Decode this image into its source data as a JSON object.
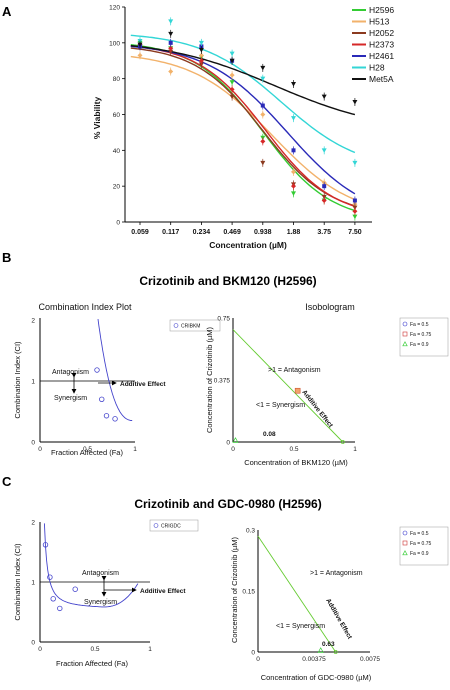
{
  "panels": {
    "A": {
      "label": "A",
      "chart_data": {
        "type": "scatter",
        "title": "",
        "xlabel": "Concentration (µM)",
        "ylabel": "% Viability",
        "x_scale": "log2",
        "x": [
          0.059,
          0.117,
          0.234,
          0.469,
          0.938,
          1.88,
          3.75,
          7.5
        ],
        "x_tick_labels": [
          "0.059",
          "0.117",
          "0.234",
          "0.469",
          "0.938",
          "1.88",
          "3.75",
          "7.50"
        ],
        "y_ticks": [
          0,
          20,
          40,
          60,
          80,
          100,
          120
        ],
        "ylim": [
          0,
          120
        ],
        "legend_position": "top-right",
        "grid": false,
        "series": [
          {
            "name": "H2596",
            "color": "#33cc33",
            "marker": "triangle-down",
            "values": [
              100,
              97,
              92,
              78,
              47,
              16,
              12,
              3
            ]
          },
          {
            "name": "H513",
            "color": "#f2b26b",
            "marker": "diamond",
            "values": [
              93,
              84,
              93,
              82,
              60,
              28,
              22,
              10
            ]
          },
          {
            "name": "H2052",
            "color": "#8b3a1f",
            "marker": "triangle-down",
            "values": [
              98,
              95,
              88,
              70,
              33,
              21,
              14,
              8
            ]
          },
          {
            "name": "H2373",
            "color": "#d62828",
            "marker": "diamond",
            "values": [
              99,
              97,
              90,
              74,
              45,
              20,
              12,
              6
            ]
          },
          {
            "name": "H2461",
            "color": "#2a2ab8",
            "marker": "square",
            "values": [
              98,
              100,
              98,
              90,
              65,
              40,
              20,
              12
            ]
          },
          {
            "name": "H28",
            "color": "#33d6d6",
            "marker": "triangle-down",
            "values": [
              101,
              112,
              100,
              94,
              80,
              58,
              40,
              33
            ]
          },
          {
            "name": "Met5A",
            "color": "#111111",
            "marker": "triangle-down",
            "values": [
              99,
              105,
              96,
              90,
              86,
              77,
              70,
              67
            ]
          }
        ]
      }
    },
    "B": {
      "label": "B",
      "title": "Crizotinib and BKM120 (H2596)",
      "ci_plot": {
        "title": "Combination Index Plot",
        "chart_data": {
          "type": "scatter",
          "xlabel": "Fraction Affected (Fa)",
          "ylabel": "Combination Index (CI)",
          "xlim": [
            0,
            1
          ],
          "ylim": [
            0,
            2
          ],
          "x_ticks": [
            "0",
            "0.5",
            "1"
          ],
          "y_ticks": [
            "0",
            "1",
            "2"
          ],
          "legend": "CRIBKM",
          "legend_position": "top-right",
          "points": [
            [
              0.6,
              1.18
            ],
            [
              0.65,
              0.7
            ],
            [
              0.7,
              0.43
            ],
            [
              0.79,
              0.38
            ]
          ],
          "reference_line": 1
        },
        "annotations": {
          "antagonism": "Antagonism",
          "synergism": "Synergism",
          "additive": "Additive Effect"
        }
      },
      "isobologram": {
        "title": "Isobologram",
        "chart_data": {
          "type": "scatter",
          "xlabel": "Concentration of BKM120 (µM)",
          "ylabel": "Concentration of Crizotinib (µM)",
          "xlim": [
            0,
            1
          ],
          "ylim": [
            0,
            0.75
          ],
          "x_ticks": [
            "0",
            "0.5",
            "1"
          ],
          "y_ticks": [
            "0",
            "0.375",
            "0.75"
          ],
          "legend_position": "top-right",
          "legend": [
            "Fa = 0.5",
            "Fa = 0.75",
            "Fa = 0.9"
          ],
          "additive_line": [
            [
              0,
              0.68
            ],
            [
              0.9,
              0
            ]
          ],
          "points": [
            {
              "fa": "Fa = 0.75",
              "x": 0.53,
              "y": 0.31
            },
            {
              "fa": "Fa = 0.9",
              "x": 0.02,
              "y": 0.01
            }
          ]
        },
        "annotations": {
          "antagonism": ">1 = Antagonism",
          "synergism": "<1 = Synergism",
          "additive": "Additive Effect",
          "ci_value": "0.08"
        }
      }
    },
    "C": {
      "label": "C",
      "title": "Crizotinib and GDC-0980 (H2596)",
      "ci_plot": {
        "chart_data": {
          "type": "scatter",
          "xlabel": "Fraction Affected (Fa)",
          "ylabel": "Combination Index (CI)",
          "xlim": [
            0,
            1
          ],
          "ylim": [
            0,
            2
          ],
          "x_ticks": [
            "0",
            "0.5",
            "1"
          ],
          "y_ticks": [
            "0",
            "1",
            "2"
          ],
          "legend": "CRIGDC",
          "legend_position": "top-right",
          "points": [
            [
              0.05,
              1.62
            ],
            [
              0.09,
              1.08
            ],
            [
              0.12,
              0.72
            ],
            [
              0.18,
              0.56
            ],
            [
              0.32,
              0.88
            ]
          ],
          "reference_line": 1
        },
        "annotations": {
          "antagonism": "Antagonism",
          "synergism": "Synergism",
          "additive": "Additive Effect"
        }
      },
      "isobologram": {
        "chart_data": {
          "type": "scatter",
          "xlabel": "Concentration of GDC-0980 (µM)",
          "ylabel": "Concentration of Crizotinib (µM)",
          "xlim": [
            0,
            0.0075
          ],
          "ylim": [
            0,
            0.3
          ],
          "x_ticks": [
            "0",
            "0.00375",
            "0.0075"
          ],
          "y_ticks": [
            "0",
            "0.15",
            "0.3"
          ],
          "legend_position": "top-right",
          "legend": [
            "Fa = 0.5",
            "Fa = 0.75",
            "Fa = 0.9"
          ],
          "additive_line": [
            [
              0,
              0.285
            ],
            [
              0.0052,
              0
            ]
          ],
          "points": [
            {
              "fa": "Fa = 0.9",
              "x": 0.0042,
              "y": 0.004
            }
          ]
        },
        "annotations": {
          "antagonism": ">1 = Antagonism",
          "synergism": "<1 = Synergism",
          "additive": "Additive Effect",
          "ci_value": "0.63"
        }
      }
    }
  }
}
